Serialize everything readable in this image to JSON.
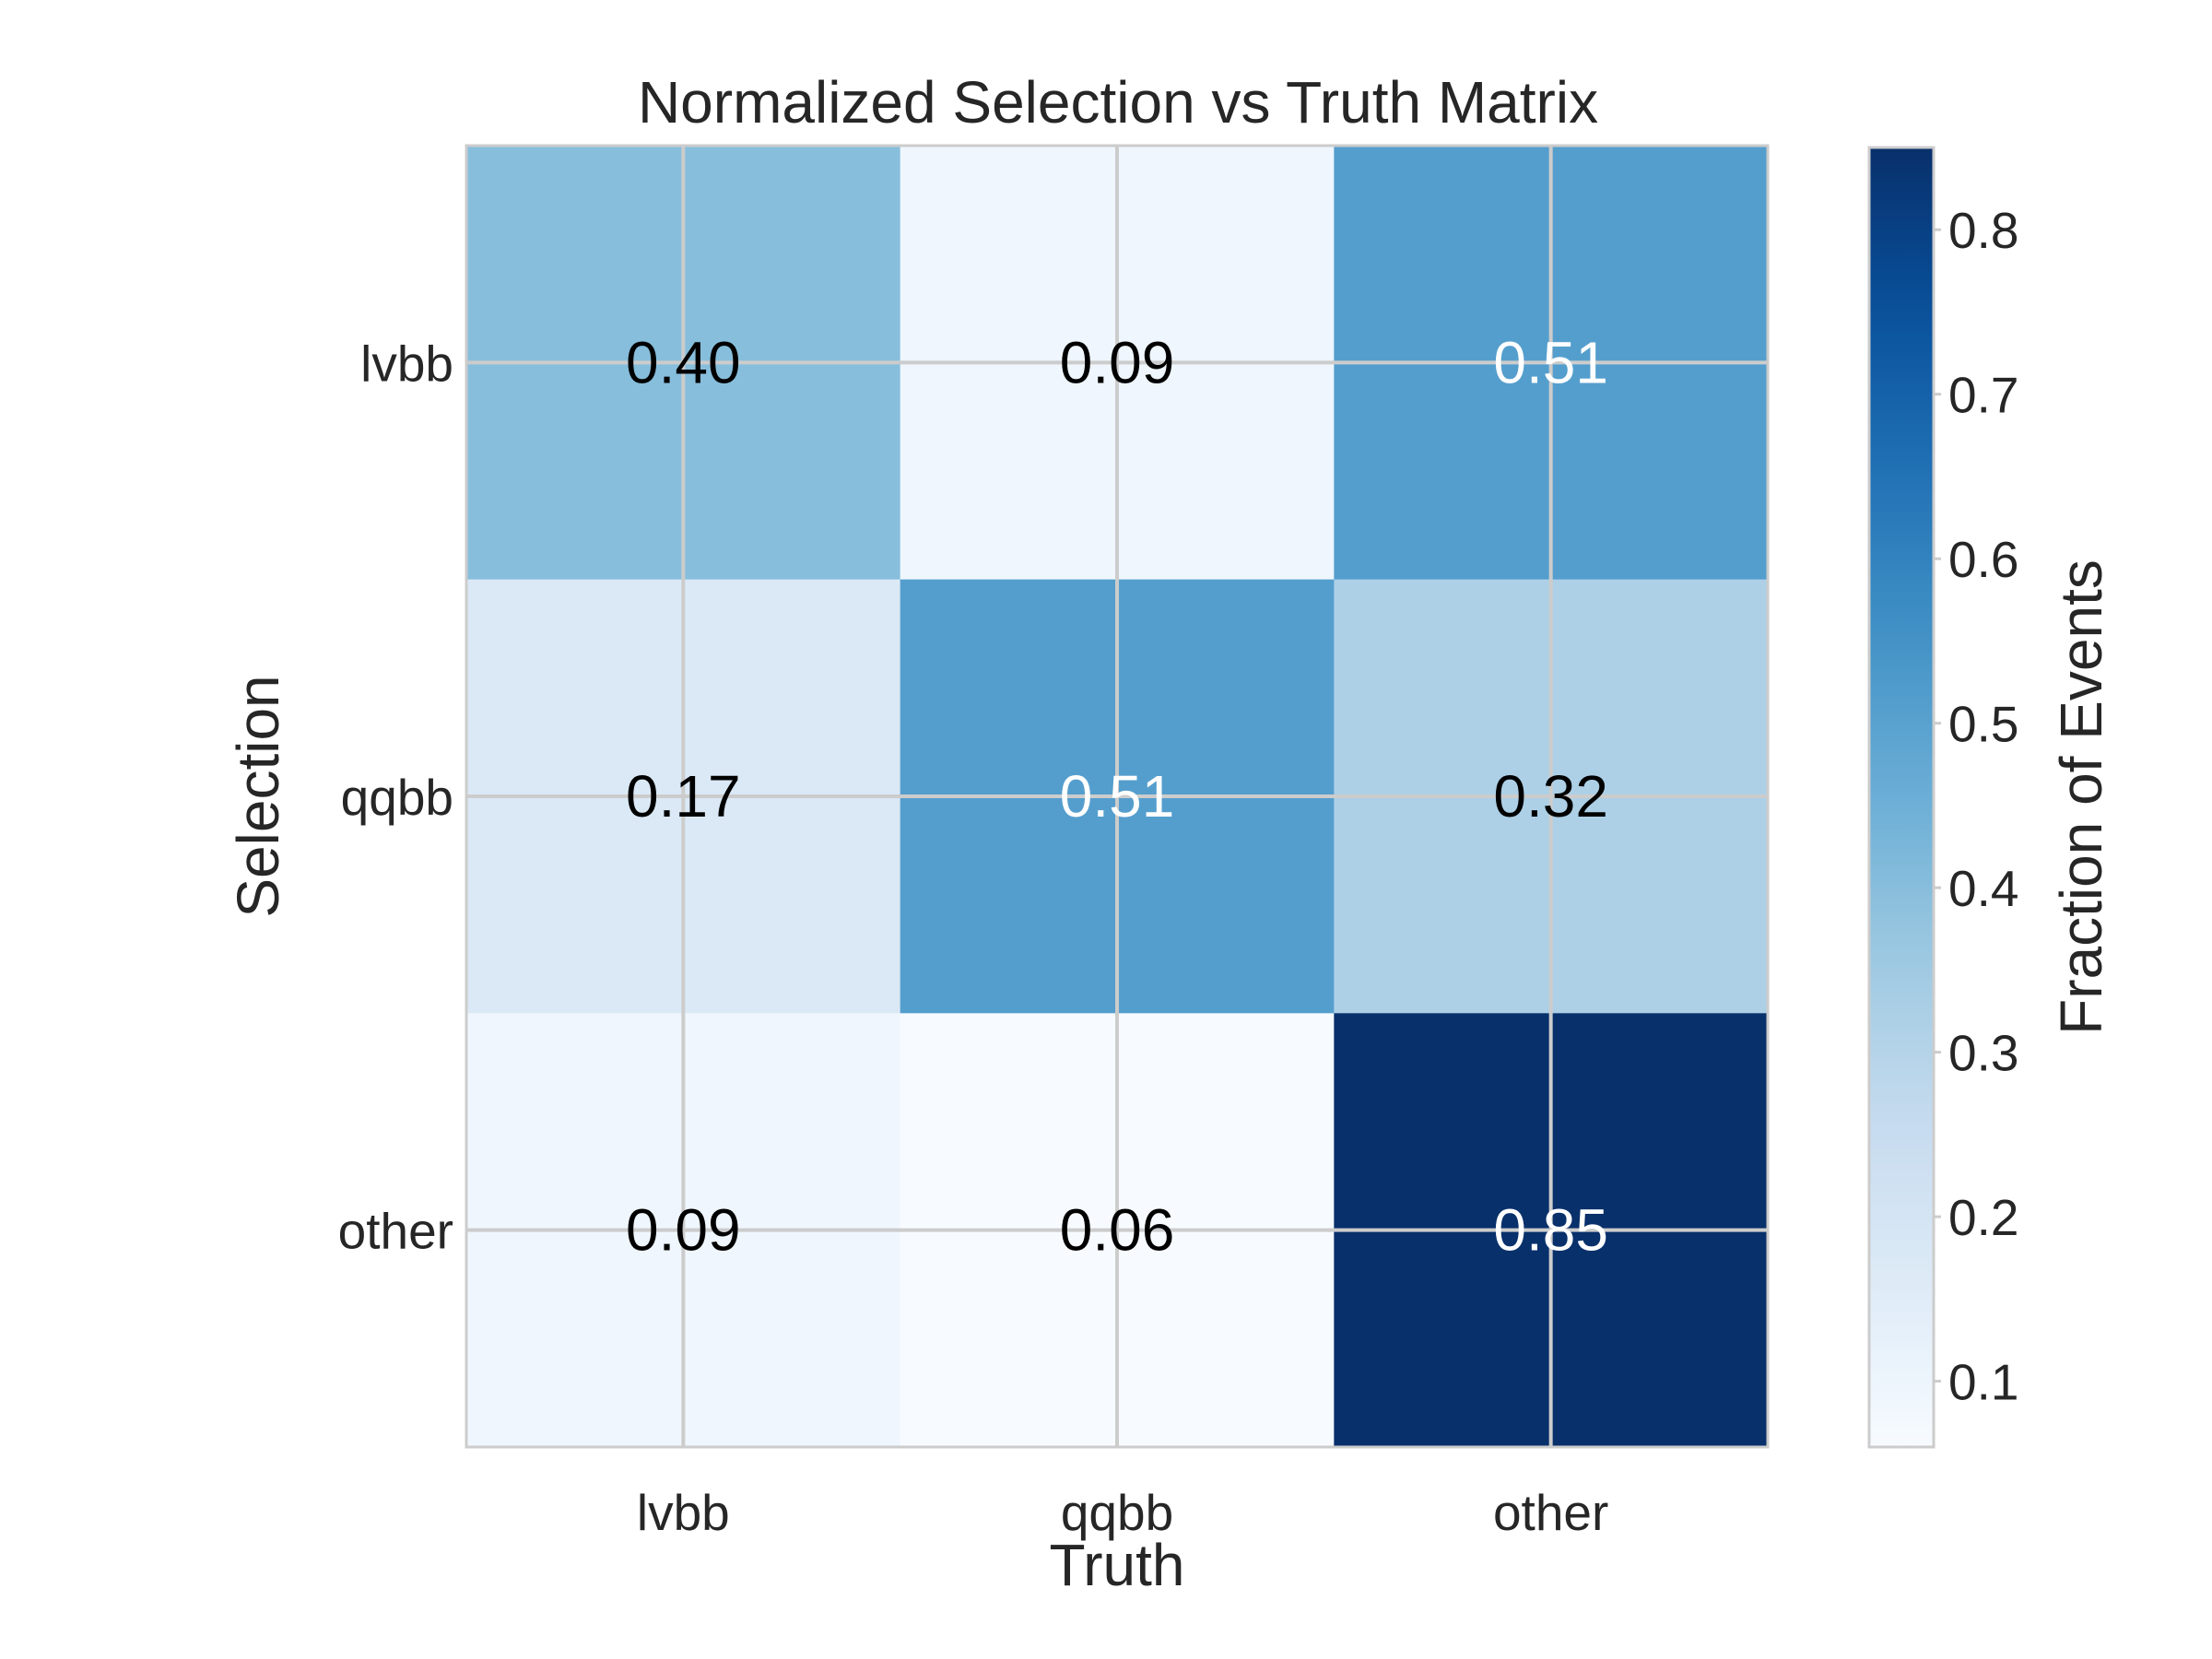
{
  "chart_data": {
    "type": "heatmap",
    "title": "Normalized Selection vs Truth Matrix",
    "xlabel": "Truth",
    "ylabel": "Selection",
    "x_categories": [
      "lvbb",
      "qqbb",
      "other"
    ],
    "y_categories": [
      "lvbb",
      "qqbb",
      "other"
    ],
    "values": [
      [
        0.4,
        0.09,
        0.51
      ],
      [
        0.17,
        0.51,
        0.32
      ],
      [
        0.09,
        0.06,
        0.85
      ]
    ],
    "value_labels": [
      [
        "0.40",
        "0.09",
        "0.51"
      ],
      [
        "0.17",
        "0.51",
        "0.32"
      ],
      [
        "0.09",
        "0.06",
        "0.85"
      ]
    ],
    "colormap": "Blues",
    "color_range": [
      0.06,
      0.85
    ],
    "colorbar": {
      "label": "Fraction of Events",
      "ticks": [
        0.1,
        0.2,
        0.3,
        0.4,
        0.5,
        0.6,
        0.7,
        0.8
      ],
      "tick_labels": [
        "0.1",
        "0.2",
        "0.3",
        "0.4",
        "0.5",
        "0.6",
        "0.7",
        "0.8"
      ]
    },
    "grid": true,
    "text_color_dark": "#000000",
    "text_color_light": "#ffffff",
    "light_text_threshold": 0.5
  }
}
